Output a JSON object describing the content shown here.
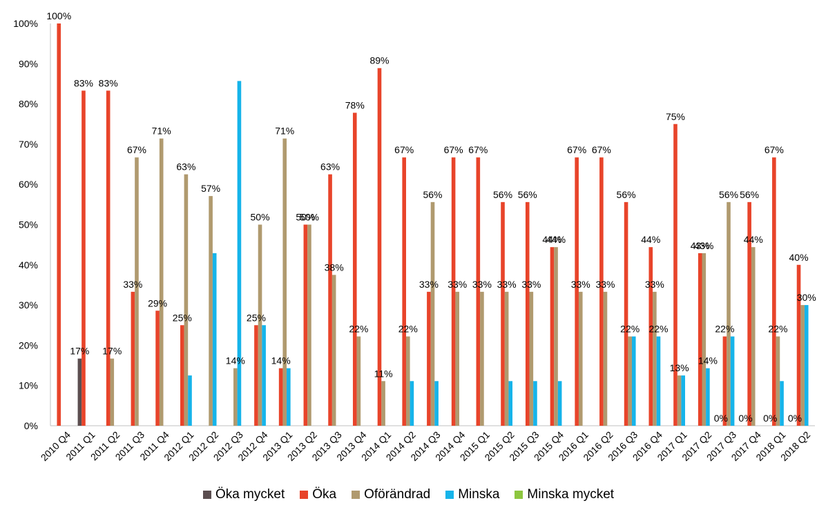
{
  "chart_data": {
    "type": "bar",
    "title": "",
    "xlabel": "",
    "ylabel": "",
    "ylim": [
      0,
      100
    ],
    "yticks": [
      "0%",
      "10%",
      "20%",
      "30%",
      "40%",
      "50%",
      "60%",
      "70%",
      "80%",
      "90%",
      "100%"
    ],
    "legend_position": "bottom",
    "grid": false,
    "categories": [
      "2010 Q4",
      "2011 Q1",
      "2011 Q2",
      "2011 Q3",
      "2011 Q4",
      "2012 Q1",
      "2012 Q2",
      "2012 Q3",
      "2012 Q4",
      "2013 Q1",
      "2013 Q2",
      "2013 Q3",
      "2013 Q4",
      "2014 Q1",
      "2014 Q2",
      "2014 Q3",
      "2014 Q4",
      "2015 Q1",
      "2015 Q2",
      "2015 Q3",
      "2015 Q4",
      "2016 Q1",
      "2016 Q2",
      "2016 Q3",
      "2016 Q4",
      "2017 Q1",
      "2017 Q2",
      "2017 Q3",
      "2017 Q4",
      "2018 Q1",
      "2018 Q2"
    ],
    "series": [
      {
        "name": "Öka mycket",
        "color": "#5b4e50",
        "values": [
          0,
          16.7,
          0,
          0,
          0,
          0,
          0,
          0,
          0,
          0,
          0,
          0,
          0,
          0,
          0,
          0,
          0,
          0,
          0,
          0,
          0,
          0,
          0,
          0,
          0,
          0,
          0,
          0,
          0,
          0,
          0
        ]
      },
      {
        "name": "Öka",
        "color": "#e8442a",
        "values": [
          100,
          83.3,
          83.3,
          33.3,
          28.6,
          25,
          0,
          0,
          25,
          14.3,
          50,
          62.5,
          77.8,
          88.9,
          66.7,
          33.3,
          66.7,
          66.7,
          55.6,
          55.6,
          44.4,
          66.7,
          66.7,
          55.6,
          44.4,
          75,
          42.9,
          22.2,
          55.6,
          66.7,
          40
        ]
      },
      {
        "name": "Oförändrad",
        "color": "#b09a6f",
        "values": [
          0,
          0,
          16.7,
          66.7,
          71.4,
          62.5,
          57.1,
          14.3,
          50,
          71.4,
          50,
          37.5,
          22.2,
          11.1,
          22.2,
          55.6,
          33.3,
          33.3,
          33.3,
          33.3,
          44.4,
          33.3,
          33.3,
          22.2,
          33.3,
          12.5,
          42.9,
          55.6,
          44.4,
          22.2,
          30
        ]
      },
      {
        "name": "Minska",
        "color": "#16b4ea",
        "values": [
          0,
          0,
          0,
          0,
          0,
          12.5,
          42.9,
          85.7,
          25,
          14.3,
          0,
          0,
          0,
          0,
          11.1,
          11.1,
          0,
          0,
          11.1,
          11.1,
          11.1,
          0,
          0,
          22.2,
          22.2,
          12.5,
          14.3,
          22.2,
          0,
          11.1,
          30
        ]
      },
      {
        "name": "Minska mycket",
        "color": "#8dc63f",
        "values": [
          0,
          0,
          0,
          0,
          0,
          0,
          0,
          0,
          0,
          0,
          0,
          0,
          0,
          0,
          0,
          0,
          0,
          0,
          0,
          0,
          0,
          0,
          0,
          0,
          0,
          0,
          0,
          0,
          0,
          0,
          0
        ]
      }
    ],
    "data_labels": [
      {
        "category": 0,
        "series": 1,
        "text": "100%"
      },
      {
        "category": 1,
        "series": 0,
        "text": "17%"
      },
      {
        "category": 1,
        "series": 1,
        "text": "83%"
      },
      {
        "category": 2,
        "series": 1,
        "text": "83%"
      },
      {
        "category": 2,
        "series": 2,
        "text": "17%"
      },
      {
        "category": 3,
        "series": 2,
        "text": "67%"
      },
      {
        "category": 3,
        "series": 1,
        "text": "33%"
      },
      {
        "category": 4,
        "series": 2,
        "text": "71%"
      },
      {
        "category": 4,
        "series": 1,
        "text": "29%"
      },
      {
        "category": 5,
        "series": 2,
        "text": "63%"
      },
      {
        "category": 5,
        "series": 1,
        "text": "25%"
      },
      {
        "category": 6,
        "series": 2,
        "text": "57%"
      },
      {
        "category": 7,
        "series": 2,
        "text": "14%"
      },
      {
        "category": 8,
        "series": 2,
        "text": "50%"
      },
      {
        "category": 8,
        "series": 1,
        "text": "25%"
      },
      {
        "category": 9,
        "series": 2,
        "text": "71%"
      },
      {
        "category": 9,
        "series": 1,
        "text": "14%"
      },
      {
        "category": 10,
        "series": 1,
        "text": "50%"
      },
      {
        "category": 10,
        "series": 2,
        "text": "50%"
      },
      {
        "category": 11,
        "series": 1,
        "text": "63%"
      },
      {
        "category": 11,
        "series": 2,
        "text": "38%"
      },
      {
        "category": 12,
        "series": 1,
        "text": "78%"
      },
      {
        "category": 12,
        "series": 2,
        "text": "22%"
      },
      {
        "category": 13,
        "series": 1,
        "text": "89%"
      },
      {
        "category": 13,
        "series": 2,
        "text": "11%"
      },
      {
        "category": 14,
        "series": 1,
        "text": "67%"
      },
      {
        "category": 14,
        "series": 2,
        "text": "22%"
      },
      {
        "category": 15,
        "series": 2,
        "text": "56%"
      },
      {
        "category": 15,
        "series": 1,
        "text": "33%"
      },
      {
        "category": 16,
        "series": 1,
        "text": "67%"
      },
      {
        "category": 16,
        "series": 2,
        "text": "33%"
      },
      {
        "category": 17,
        "series": 1,
        "text": "67%"
      },
      {
        "category": 17,
        "series": 2,
        "text": "33%"
      },
      {
        "category": 18,
        "series": 1,
        "text": "56%"
      },
      {
        "category": 18,
        "series": 2,
        "text": "33%"
      },
      {
        "category": 19,
        "series": 1,
        "text": "56%"
      },
      {
        "category": 19,
        "series": 2,
        "text": "33%"
      },
      {
        "category": 20,
        "series": 2,
        "text": "44%"
      },
      {
        "category": 20,
        "series": 1,
        "text": "44%"
      },
      {
        "category": 21,
        "series": 1,
        "text": "67%"
      },
      {
        "category": 21,
        "series": 2,
        "text": "33%"
      },
      {
        "category": 22,
        "series": 1,
        "text": "67%"
      },
      {
        "category": 22,
        "series": 2,
        "text": "33%"
      },
      {
        "category": 23,
        "series": 1,
        "text": "56%"
      },
      {
        "category": 23,
        "series": 2,
        "text": "22%"
      },
      {
        "category": 24,
        "series": 1,
        "text": "44%"
      },
      {
        "category": 24,
        "series": 2,
        "text": "33%"
      },
      {
        "category": 24,
        "series": 3,
        "text": "22%"
      },
      {
        "category": 25,
        "series": 1,
        "text": "75%"
      },
      {
        "category": 25,
        "series": 2,
        "text": "13%"
      },
      {
        "category": 26,
        "series": 2,
        "text": "43%"
      },
      {
        "category": 26,
        "series": 1,
        "text": "43%"
      },
      {
        "category": 26,
        "series": 3,
        "text": "14%"
      },
      {
        "category": 27,
        "series": 2,
        "text": "56%"
      },
      {
        "category": 27,
        "series": 1,
        "text": "22%"
      },
      {
        "category": 27,
        "series": 0,
        "text": "0%"
      },
      {
        "category": 28,
        "series": 1,
        "text": "56%"
      },
      {
        "category": 28,
        "series": 2,
        "text": "44%"
      },
      {
        "category": 28,
        "series": 0,
        "text": "0%"
      },
      {
        "category": 29,
        "series": 1,
        "text": "67%"
      },
      {
        "category": 29,
        "series": 2,
        "text": "22%"
      },
      {
        "category": 29,
        "series": 0,
        "text": "0%"
      },
      {
        "category": 30,
        "series": 1,
        "text": "40%"
      },
      {
        "category": 30,
        "series": 3,
        "text": "30%"
      },
      {
        "category": 30,
        "series": 0,
        "text": "0%"
      }
    ]
  },
  "legend": {
    "items": [
      {
        "label": "Öka mycket",
        "color": "#5b4e50"
      },
      {
        "label": "Öka",
        "color": "#e8442a"
      },
      {
        "label": "Oförändrad",
        "color": "#b09a6f"
      },
      {
        "label": "Minska",
        "color": "#16b4ea"
      },
      {
        "label": "Minska mycket",
        "color": "#8dc63f"
      }
    ]
  }
}
